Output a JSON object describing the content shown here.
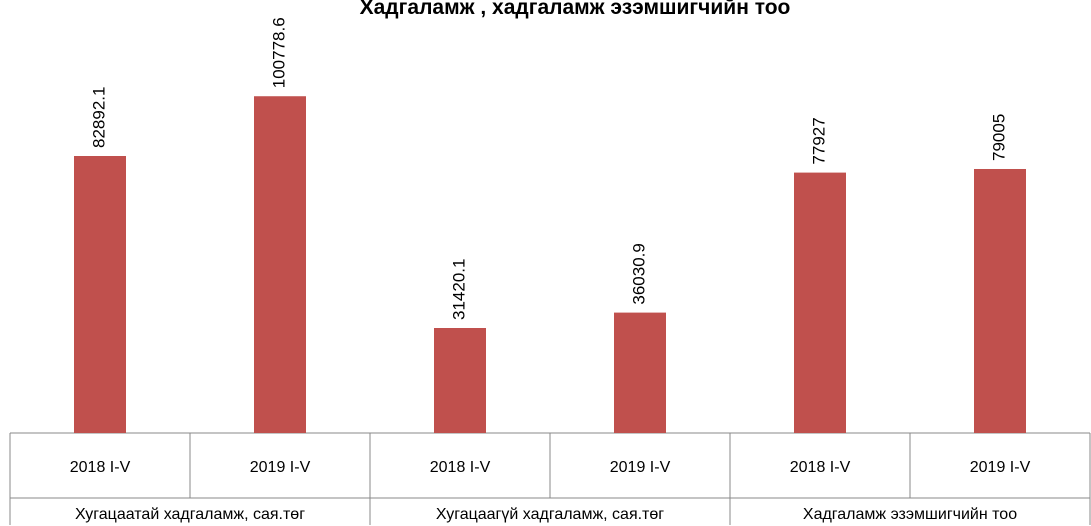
{
  "chart_data": {
    "type": "bar",
    "title": "Хадгаламж , хадгаламж эзэмшигчийн тоо",
    "groups": [
      "Хугацаатай хадгаламж, сая.төг",
      "Хугацаагүй хадгаламж, сая.төг",
      "Хадгаламж эзэмшигчийн тоо"
    ],
    "categories": [
      "2018 I-V",
      "2019 I-V",
      "2018 I-V",
      "2019 I-V",
      "2018 I-V",
      "2019 I-V"
    ],
    "values": [
      82892.1,
      100778.6,
      31420.1,
      36030.9,
      77927,
      79005
    ],
    "color": "#c0504d",
    "ylim": [
      0,
      120000
    ]
  }
}
